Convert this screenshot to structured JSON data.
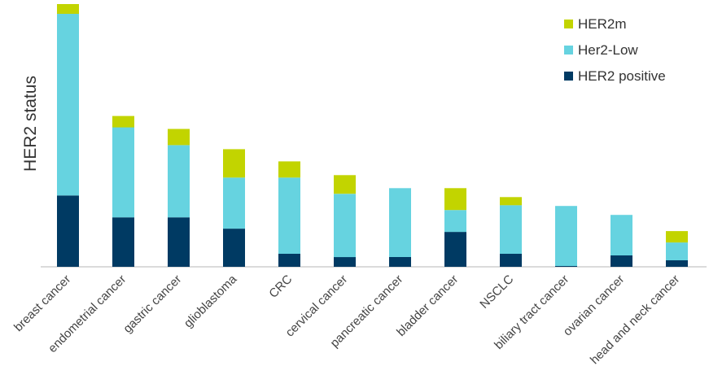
{
  "chart_data": {
    "type": "bar",
    "stacked": true,
    "title": "",
    "xlabel": "",
    "ylabel": "HER2 status",
    "categories": [
      "breast cancer",
      "endometrial cancer",
      "gastric cancer",
      "glioblastoma",
      "CRC",
      "cervical cancer",
      "pancreatic cancer",
      "bladder cancer",
      "NSCLC",
      "biliary tract cancer",
      "ovarian cancer",
      "head and neck cancer"
    ],
    "series": [
      {
        "name": "HER2 positive",
        "color": "#003a63",
        "values": [
          88,
          61,
          61,
          47,
          16,
          12,
          12,
          43,
          16,
          1,
          14,
          8
        ]
      },
      {
        "name": "Her2-Low",
        "color": "#66d3e0",
        "values": [
          224,
          111,
          89,
          63,
          94,
          78,
          85,
          27,
          60,
          74,
          50,
          22
        ]
      },
      {
        "name": "HER2m",
        "color": "#c2d400",
        "values": [
          12,
          14,
          20,
          35,
          20,
          23,
          0,
          27,
          10,
          0,
          0,
          14
        ]
      }
    ],
    "ylim": [
      0,
      325
    ],
    "grid": false,
    "legend_position": "top-right"
  }
}
